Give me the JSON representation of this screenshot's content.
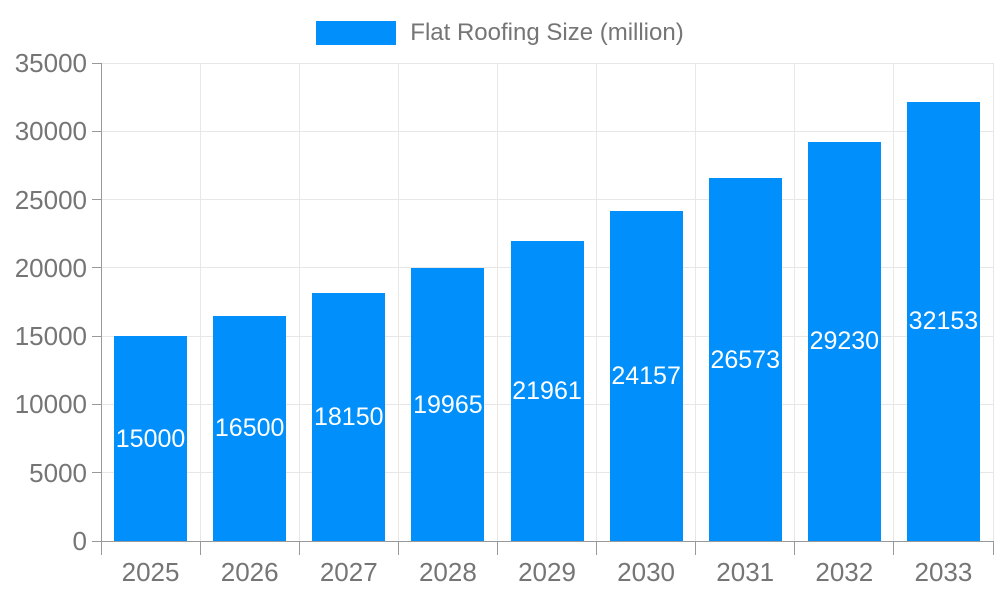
{
  "chart_data": {
    "type": "bar",
    "title": "Flat Roofing Size (million)",
    "legend_position": "top",
    "categories": [
      "2025",
      "2026",
      "2027",
      "2028",
      "2029",
      "2030",
      "2031",
      "2032",
      "2033"
    ],
    "series": [
      {
        "name": "Flat Roofing Size (million)",
        "values": [
          15000,
          16500,
          18150,
          19965,
          21961,
          24157,
          26573,
          29230,
          32153
        ]
      }
    ],
    "xlabel": "",
    "ylabel": "",
    "ylim": [
      0,
      35000
    ],
    "yticks": [
      0,
      5000,
      10000,
      15000,
      20000,
      25000,
      30000,
      35000
    ],
    "grid": true,
    "colors": {
      "bar": "#008FFB",
      "bar_label": "#ffffff",
      "axis_text": "#757575",
      "grid_line": "#e7e7e7",
      "axis_line": "#999999",
      "background": "#ffffff"
    }
  }
}
